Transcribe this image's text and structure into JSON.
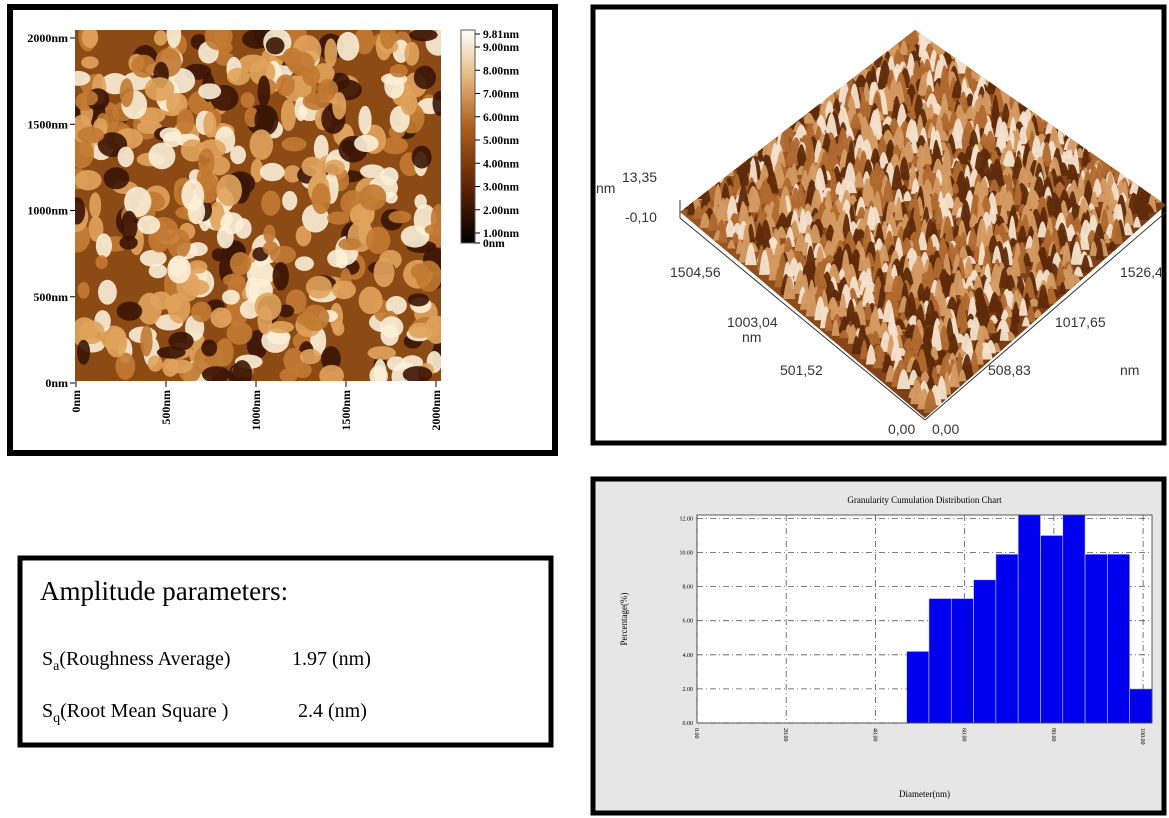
{
  "afm_2d": {
    "y_labels": [
      "2000nm",
      "1500nm",
      "1000nm",
      "500nm",
      "0nm"
    ],
    "x_labels": [
      "0nm",
      "500nm",
      "1000nm",
      "1500nm",
      "2000nm"
    ],
    "colorbar_labels": [
      "9.81nm",
      "9.00nm",
      "8.00nm",
      "7.00nm",
      "6.00nm",
      "5.00nm",
      "4.00nm",
      "3.00nm",
      "2.00nm",
      "1.00nm",
      "0nm"
    ]
  },
  "afm_3d": {
    "z_unit": "nm",
    "z_labels": [
      "13,35",
      "-0,10"
    ],
    "y_labels": [
      "1504,56",
      "1003,04",
      "501,52",
      "0,00"
    ],
    "y_unit": "nm",
    "x_labels": [
      "0,00",
      "508,83",
      "1017,65",
      "1526,4"
    ],
    "x_unit": "nm"
  },
  "amplitude": {
    "title": "Amplitude parameters:",
    "rows": [
      {
        "symbol": "S",
        "subscript": "a",
        "name": "(Roughness Average)",
        "value": "1.97 (nm)"
      },
      {
        "symbol": "S",
        "subscript": "q",
        "name": "(Root Mean Square )",
        "value": "2.4 (nm)"
      }
    ]
  },
  "chart_data": {
    "type": "histogram",
    "title": "Granularity Cumulation Distribution  Chart",
    "x_label": "Diameter(nm)",
    "y_label": "Percentage(%)",
    "bins": [
      47,
      52,
      57,
      62,
      67,
      72,
      77,
      82,
      87,
      92,
      97,
      102
    ],
    "values": [
      4.2,
      7.3,
      7.3,
      8.4,
      9.9,
      12.2,
      11.0,
      12.2,
      9.9,
      9.9,
      2.0
    ],
    "color": "#0000ee",
    "xlim": [
      0,
      102
    ],
    "ylim": [
      0,
      12.2
    ],
    "xticks": [
      {
        "value": 0,
        "label": "0.00"
      },
      {
        "value": 20,
        "label": "20.00"
      },
      {
        "value": 40,
        "label": "40.00"
      },
      {
        "value": 60,
        "label": "60.00"
      },
      {
        "value": 80,
        "label": "80.00"
      },
      {
        "value": 100,
        "label": "100.00"
      }
    ],
    "yticks": [
      {
        "value": 0,
        "label": "0.00"
      },
      {
        "value": 2,
        "label": "2.00"
      },
      {
        "value": 4,
        "label": "4.00"
      },
      {
        "value": 6,
        "label": "6.00"
      },
      {
        "value": 8,
        "label": "8.00"
      },
      {
        "value": 10,
        "label": "10.00"
      },
      {
        "value": 12,
        "label": "12.00"
      }
    ],
    "grid": true
  }
}
